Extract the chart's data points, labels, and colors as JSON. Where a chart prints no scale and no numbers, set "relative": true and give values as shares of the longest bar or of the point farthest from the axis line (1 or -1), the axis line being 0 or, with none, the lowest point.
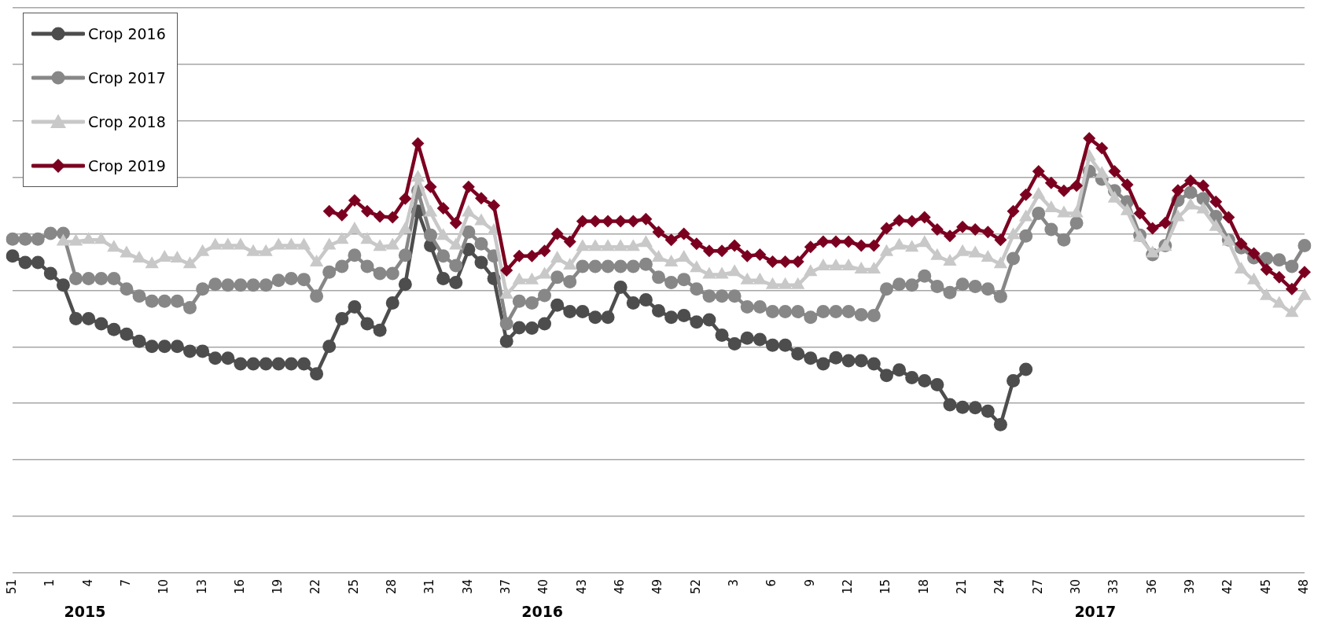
{
  "chart_data": {
    "type": "line",
    "relative": true,
    "grid": "y",
    "legend": "top left",
    "line_style": "solid",
    "categories": [
      "51",
      null,
      null,
      "1",
      null,
      null,
      "4",
      null,
      null,
      "7",
      null,
      null,
      "10",
      null,
      null,
      "13",
      null,
      null,
      "16",
      null,
      null,
      "19",
      null,
      null,
      "22",
      null,
      null,
      "25",
      null,
      null,
      "28",
      null,
      null,
      "31",
      null,
      null,
      "34",
      null,
      null,
      "37",
      null,
      null,
      "40",
      null,
      null,
      "43",
      null,
      null,
      "46",
      null,
      null,
      "49",
      null,
      null,
      "52",
      null,
      null,
      "3",
      null,
      null,
      "6",
      null,
      null,
      "9",
      null,
      null,
      "12",
      null,
      null,
      "15",
      null,
      null,
      "18",
      null,
      null,
      "21",
      null,
      null,
      "24",
      null,
      null,
      "27",
      null,
      null,
      "30",
      null,
      null,
      "33",
      null,
      null,
      "36",
      null,
      null,
      "39",
      null,
      null,
      "42",
      null,
      null,
      "45",
      null,
      null,
      "48"
    ],
    "annotations": [
      "2015",
      "2016",
      "2017"
    ],
    "series": [
      {
        "name": "Crop 2016",
        "color": "#4d4d4d",
        "marker": "circle",
        "values": [
          0.729,
          0.714,
          0.714,
          0.689,
          0.662,
          0.585,
          0.585,
          0.573,
          0.56,
          0.549,
          0.533,
          0.521,
          0.521,
          0.521,
          0.51,
          0.51,
          0.494,
          0.494,
          0.481,
          0.481,
          0.481,
          0.481,
          0.481,
          0.481,
          0.458,
          0.521,
          0.585,
          0.612,
          0.573,
          0.558,
          0.621,
          0.664,
          0.832,
          0.753,
          0.677,
          0.668,
          0.744,
          0.714,
          0.677,
          0.533,
          0.564,
          0.563,
          0.573,
          0.616,
          0.601,
          0.601,
          0.588,
          0.588,
          0.657,
          0.621,
          0.628,
          0.603,
          0.588,
          0.592,
          0.577,
          0.582,
          0.547,
          0.527,
          0.54,
          0.537,
          0.524,
          0.524,
          0.504,
          0.494,
          0.481,
          0.495,
          0.488,
          0.488,
          0.481,
          0.454,
          0.467,
          0.449,
          0.442,
          0.433,
          0.387,
          0.381,
          0.38,
          0.372,
          0.341,
          0.442,
          0.468,
          null,
          null,
          null,
          null,
          null,
          null,
          null,
          null,
          null,
          null,
          null,
          null,
          null,
          null,
          null,
          null,
          null,
          null,
          null,
          null,
          null,
          null
        ]
      },
      {
        "name": "Crop 2017",
        "color": "#878787",
        "marker": "circle",
        "values": [
          0.768,
          0.768,
          0.768,
          0.781,
          0.781,
          0.677,
          0.677,
          0.677,
          0.677,
          0.653,
          0.637,
          0.625,
          0.625,
          0.625,
          0.61,
          0.653,
          0.664,
          0.662,
          0.662,
          0.662,
          0.662,
          0.673,
          0.677,
          0.675,
          0.637,
          0.692,
          0.705,
          0.731,
          0.705,
          0.689,
          0.689,
          0.731,
          0.879,
          0.777,
          0.729,
          0.707,
          0.784,
          0.757,
          0.729,
          0.573,
          0.625,
          0.621,
          0.638,
          0.68,
          0.67,
          0.705,
          0.705,
          0.705,
          0.705,
          0.705,
          0.71,
          0.68,
          0.668,
          0.675,
          0.653,
          0.637,
          0.637,
          0.637,
          0.612,
          0.612,
          0.601,
          0.601,
          0.601,
          0.588,
          0.601,
          0.601,
          0.601,
          0.594,
          0.592,
          0.653,
          0.664,
          0.662,
          0.683,
          0.659,
          0.645,
          0.664,
          0.659,
          0.653,
          0.636,
          0.723,
          0.775,
          0.827,
          0.79,
          0.766,
          0.805,
          0.924,
          0.906,
          0.879,
          0.854,
          0.777,
          0.732,
          0.753,
          0.857,
          0.875,
          0.861,
          0.82,
          0.766,
          0.748,
          0.725,
          0.723,
          0.72,
          0.705,
          0.753
        ]
      },
      {
        "name": "Crop 2018",
        "color": "#c8c8c8",
        "marker": "triangle",
        "values": [
          null,
          null,
          null,
          null,
          0.762,
          0.762,
          0.766,
          0.766,
          0.748,
          0.735,
          0.723,
          0.71,
          0.725,
          0.723,
          0.71,
          0.738,
          0.753,
          0.753,
          0.753,
          0.738,
          0.738,
          0.753,
          0.753,
          0.753,
          0.714,
          0.753,
          0.766,
          0.79,
          0.766,
          0.75,
          0.753,
          0.79,
          0.909,
          0.829,
          0.775,
          0.753,
          0.829,
          0.809,
          0.787,
          0.64,
          0.673,
          0.673,
          0.686,
          0.723,
          0.707,
          0.75,
          0.75,
          0.75,
          0.75,
          0.75,
          0.759,
          0.725,
          0.714,
          0.725,
          0.701,
          0.686,
          0.686,
          0.692,
          0.673,
          0.673,
          0.662,
          0.662,
          0.662,
          0.692,
          0.705,
          0.705,
          0.705,
          0.698,
          0.698,
          0.738,
          0.753,
          0.748,
          0.759,
          0.729,
          0.716,
          0.738,
          0.735,
          0.725,
          0.71,
          0.777,
          0.818,
          0.87,
          0.839,
          0.827,
          0.827,
          0.958,
          0.918,
          0.861,
          0.832,
          0.771,
          0.735,
          0.75,
          0.818,
          0.845,
          0.836,
          0.796,
          0.762,
          0.698,
          0.673,
          0.637,
          0.619,
          0.598,
          0.637
        ]
      },
      {
        "name": "Crop 2019",
        "color": "#7b0020",
        "marker": "diamond",
        "values": [
          null,
          null,
          null,
          null,
          null,
          null,
          null,
          null,
          null,
          null,
          null,
          null,
          null,
          null,
          null,
          null,
          null,
          null,
          null,
          null,
          null,
          null,
          null,
          null,
          null,
          0.832,
          0.823,
          0.857,
          0.832,
          0.82,
          0.818,
          0.861,
          0.988,
          0.888,
          0.839,
          0.805,
          0.888,
          0.862,
          0.845,
          0.696,
          0.729,
          0.729,
          0.741,
          0.78,
          0.762,
          0.809,
          0.809,
          0.809,
          0.809,
          0.809,
          0.814,
          0.784,
          0.766,
          0.78,
          0.757,
          0.741,
          0.741,
          0.753,
          0.729,
          0.732,
          0.716,
          0.716,
          0.716,
          0.75,
          0.762,
          0.762,
          0.762,
          0.753,
          0.753,
          0.793,
          0.811,
          0.809,
          0.818,
          0.79,
          0.775,
          0.796,
          0.79,
          0.784,
          0.766,
          0.832,
          0.87,
          0.924,
          0.897,
          0.879,
          0.891,
          1,
          0.977,
          0.924,
          0.893,
          0.827,
          0.793,
          0.805,
          0.88,
          0.902,
          0.891,
          0.854,
          0.818,
          0.757,
          0.735,
          0.698,
          0.68,
          0.653,
          0.692
        ]
      }
    ]
  }
}
